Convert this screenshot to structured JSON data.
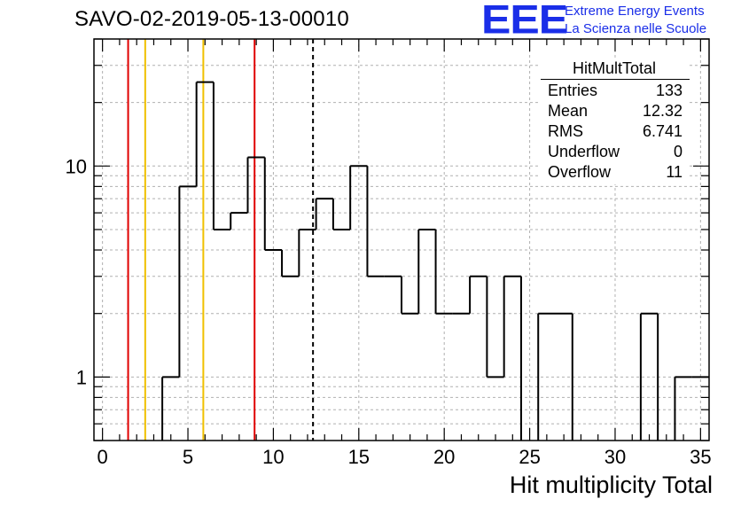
{
  "header": {
    "run_id": "SAVO-02-2019-05-13-00010",
    "logo_text": "EEE",
    "logo_line1": "Extreme Energy Events",
    "logo_line2": "La Scienza nelle Scuole"
  },
  "stats": {
    "title": "HitMultTotal",
    "rows": [
      {
        "key": "Entries",
        "value": "133"
      },
      {
        "key": "Mean",
        "value": "12.32"
      },
      {
        "key": "RMS",
        "value": "6.741"
      },
      {
        "key": "Underflow",
        "value": "0"
      },
      {
        "key": "Overflow",
        "value": "11"
      }
    ]
  },
  "colors": {
    "histogram": "#000000",
    "red_line": "#e00000",
    "yellow_line": "#f0c000",
    "grid": "#b0b0b0",
    "logo": "#1a2ee8"
  },
  "chart_data": {
    "type": "histogram",
    "title": "SAVO-02-2019-05-13-00010",
    "xlabel": "Hit multiplicity Total",
    "ylabel": "",
    "xlim": [
      -0.5,
      35.5
    ],
    "ylim": [
      0.5,
      40
    ],
    "y_scale": "log",
    "grid": true,
    "bin_edges_start": -0.5,
    "bin_width": 1,
    "counts": [
      0,
      0,
      0,
      0,
      1,
      8,
      25,
      5,
      6,
      11,
      4,
      3,
      5,
      7,
      5,
      10,
      3,
      3,
      2,
      5,
      2,
      2,
      3,
      1,
      3,
      0,
      2,
      2,
      0,
      0,
      0,
      0,
      2,
      0,
      1,
      1
    ],
    "x_tick_labels": [
      "0",
      "5",
      "10",
      "15",
      "20",
      "25",
      "30",
      "35"
    ],
    "x_tick_values": [
      0,
      5,
      10,
      15,
      20,
      25,
      30,
      35
    ],
    "y_tick_labels": [
      "1",
      "10"
    ],
    "y_tick_values": [
      1,
      10
    ],
    "vertical_lines": [
      {
        "x": 1.5,
        "color": "red",
        "style": "solid"
      },
      {
        "x": 2.5,
        "color": "yellow",
        "style": "solid"
      },
      {
        "x": 5.9,
        "color": "yellow",
        "style": "solid"
      },
      {
        "x": 8.9,
        "color": "red",
        "style": "solid"
      },
      {
        "x": 12.32,
        "color": "black",
        "style": "dashed"
      }
    ]
  }
}
